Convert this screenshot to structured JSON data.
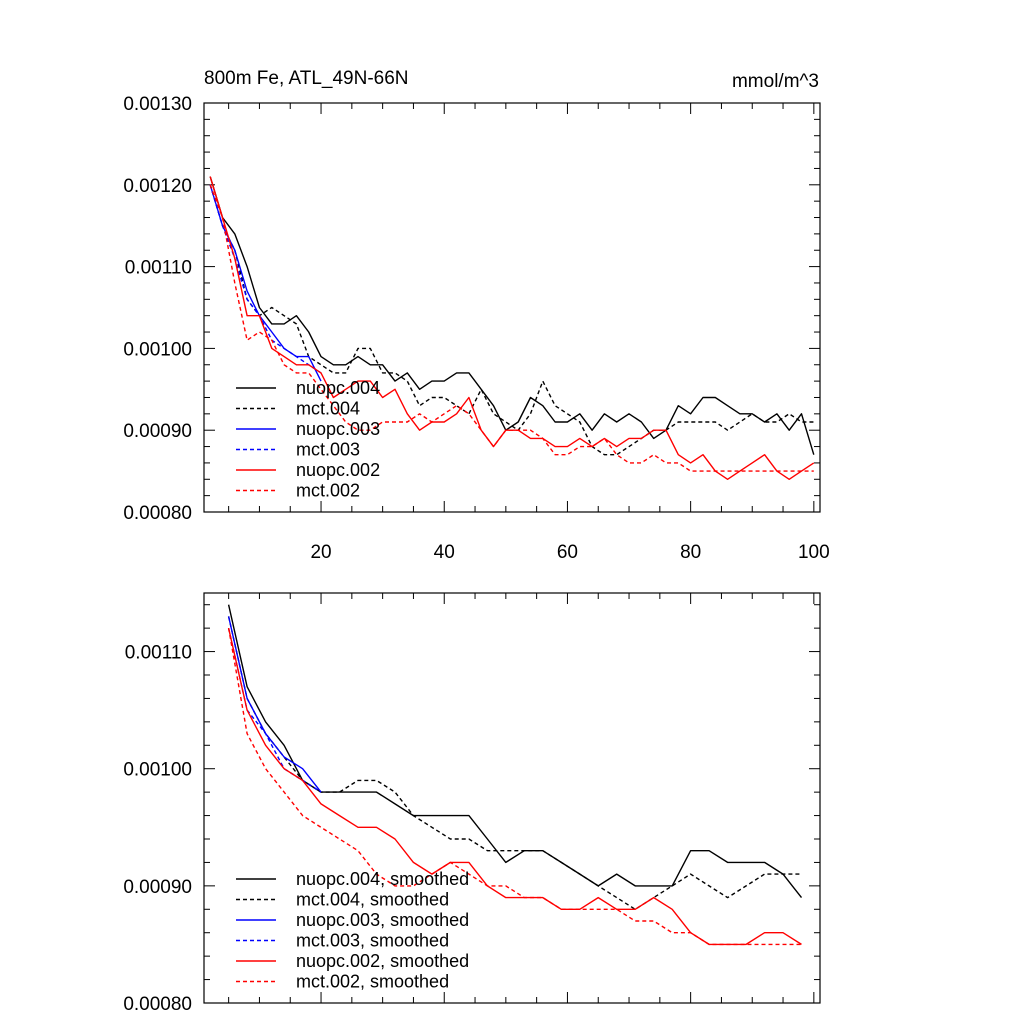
{
  "chart_data": [
    {
      "type": "line",
      "title": "800m Fe, ATL_49N-66N",
      "units": "mmol/m^3",
      "xlim": [
        1,
        101
      ],
      "ylim": [
        0.0008,
        0.0013
      ],
      "xticks": [
        20,
        40,
        60,
        80,
        100
      ],
      "xtick_labels": [
        "20",
        "40",
        "60",
        "80",
        "100"
      ],
      "yticks": [
        0.0008,
        0.0009,
        0.001,
        0.0011,
        0.0012,
        0.0013
      ],
      "ytick_labels": [
        "0.00080",
        "0.00090",
        "0.00100",
        "0.00110",
        "0.00120",
        "0.00130"
      ],
      "legend": "lower-left",
      "series": [
        {
          "name": "nuopc.004",
          "color": "#000000",
          "dash": "solid",
          "x": [
            2,
            4,
            6,
            8,
            10,
            12,
            14,
            16,
            18,
            20,
            22,
            24,
            26,
            28,
            30,
            32,
            34,
            36,
            38,
            40,
            42,
            44,
            46,
            48,
            50,
            52,
            54,
            56,
            58,
            60,
            62,
            64,
            66,
            68,
            70,
            72,
            74,
            76,
            78,
            80,
            82,
            84,
            86,
            88,
            90,
            92,
            94,
            96,
            98,
            100
          ],
          "y": [
            0.00121,
            0.00116,
            0.00114,
            0.0011,
            0.00105,
            0.00103,
            0.00103,
            0.00104,
            0.00102,
            0.00099,
            0.00098,
            0.00098,
            0.00099,
            0.00098,
            0.00098,
            0.00096,
            0.00097,
            0.00095,
            0.00096,
            0.00096,
            0.00097,
            0.00097,
            0.00095,
            0.00093,
            0.0009,
            0.00091,
            0.00094,
            0.00093,
            0.00091,
            0.00091,
            0.00092,
            0.0009,
            0.00092,
            0.00091,
            0.00092,
            0.00091,
            0.00089,
            0.0009,
            0.00093,
            0.00092,
            0.00094,
            0.00094,
            0.00093,
            0.00092,
            0.00092,
            0.00091,
            0.00092,
            0.0009,
            0.00092,
            0.00087
          ]
        },
        {
          "name": "mct.004",
          "color": "#000000",
          "dash": "dashed",
          "x": [
            2,
            4,
            6,
            8,
            10,
            12,
            14,
            16,
            18,
            20,
            22,
            24,
            26,
            28,
            30,
            32,
            34,
            36,
            38,
            40,
            42,
            44,
            46,
            48,
            50,
            52,
            54,
            56,
            58,
            60,
            62,
            64,
            66,
            68,
            70,
            72,
            74,
            76,
            78,
            80,
            82,
            84,
            86,
            88,
            90,
            92,
            94,
            96,
            98,
            100
          ],
          "y": [
            0.0012,
            0.00115,
            0.00112,
            0.00106,
            0.00104,
            0.00105,
            0.00104,
            0.00103,
            0.00099,
            0.00098,
            0.00097,
            0.00097,
            0.001,
            0.001,
            0.00097,
            0.00097,
            0.00096,
            0.00093,
            0.00094,
            0.00094,
            0.00093,
            0.00092,
            0.00095,
            0.00092,
            0.00091,
            0.0009,
            0.00092,
            0.00096,
            0.00093,
            0.00092,
            0.00091,
            0.00088,
            0.00087,
            0.00087,
            0.00088,
            0.00089,
            0.0009,
            0.0009,
            0.00091,
            0.00091,
            0.00091,
            0.00091,
            0.0009,
            0.00091,
            0.00092,
            0.00091,
            0.00091,
            0.00092,
            0.00091,
            0.00091
          ]
        },
        {
          "name": "nuopc.003",
          "color": "#0000ff",
          "dash": "solid",
          "x": [
            2,
            4,
            6,
            8,
            10,
            12,
            14,
            16,
            18,
            20
          ],
          "y": [
            0.0012,
            0.00115,
            0.00112,
            0.00107,
            0.00104,
            0.00102,
            0.001,
            0.00099,
            0.00099,
            0.00096
          ]
        },
        {
          "name": "mct.003",
          "color": "#0000ff",
          "dash": "dashed",
          "x": [
            2,
            4,
            6,
            8,
            10,
            12,
            14,
            16,
            18,
            20
          ],
          "y": [
            0.0012,
            0.00115,
            0.00111,
            0.00106,
            0.00104,
            0.00101,
            0.001,
            0.00099,
            0.00098,
            0.00097
          ]
        },
        {
          "name": "nuopc.002",
          "color": "#ff0000",
          "dash": "solid",
          "x": [
            2,
            4,
            6,
            8,
            10,
            12,
            14,
            16,
            18,
            20,
            22,
            24,
            26,
            28,
            30,
            32,
            34,
            36,
            38,
            40,
            42,
            44,
            46,
            48,
            50,
            52,
            54,
            56,
            58,
            60,
            62,
            64,
            66,
            68,
            70,
            72,
            74,
            76,
            78,
            80,
            82,
            84,
            86,
            88,
            90,
            92,
            94,
            96,
            98,
            100
          ],
          "y": [
            0.00121,
            0.00116,
            0.00111,
            0.00104,
            0.00104,
            0.001,
            0.00099,
            0.00098,
            0.00098,
            0.00097,
            0.00094,
            0.00095,
            0.00096,
            0.00096,
            0.00094,
            0.00095,
            0.00092,
            0.0009,
            0.00091,
            0.00091,
            0.00092,
            0.00094,
            0.0009,
            0.00088,
            0.0009,
            0.0009,
            0.00089,
            0.00089,
            0.00088,
            0.00088,
            0.00089,
            0.00088,
            0.00089,
            0.00088,
            0.00089,
            0.00089,
            0.0009,
            0.0009,
            0.00087,
            0.00086,
            0.00087,
            0.00085,
            0.00084,
            0.00085,
            0.00086,
            0.00087,
            0.00085,
            0.00084,
            0.00085,
            0.00086
          ]
        },
        {
          "name": "mct.002",
          "color": "#ff0000",
          "dash": "dashed",
          "x": [
            2,
            4,
            6,
            8,
            10,
            12,
            14,
            16,
            18,
            20,
            22,
            24,
            26,
            28,
            30,
            32,
            34,
            36,
            38,
            40,
            42,
            44,
            46,
            48,
            50,
            52,
            54,
            56,
            58,
            60,
            62,
            64,
            66,
            68,
            70,
            72,
            74,
            76,
            78,
            80,
            82,
            84,
            86,
            88,
            90,
            92,
            94,
            96,
            98,
            100
          ],
          "y": [
            0.0012,
            0.00116,
            0.00108,
            0.00101,
            0.00102,
            0.00101,
            0.00098,
            0.00097,
            0.00097,
            0.00095,
            0.00093,
            0.00091,
            0.0009,
            0.0009,
            0.00091,
            0.00091,
            0.00091,
            0.00092,
            0.00091,
            0.00092,
            0.00093,
            0.00092,
            0.0009,
            0.00088,
            0.0009,
            0.0009,
            0.0009,
            0.00089,
            0.00087,
            0.00087,
            0.00088,
            0.00088,
            0.00089,
            0.00087,
            0.00086,
            0.00086,
            0.00087,
            0.00086,
            0.00086,
            0.00085,
            0.00085,
            0.00085,
            0.00085,
            0.00085,
            0.00085,
            0.00085,
            0.00085,
            0.00085,
            0.00085,
            0.00085
          ]
        }
      ]
    },
    {
      "type": "line",
      "title": "",
      "xlim": [
        1,
        101
      ],
      "ylim": [
        0.0008,
        0.00115
      ],
      "xticks": [
        20,
        40,
        60,
        80,
        100
      ],
      "yticks": [
        0.0008,
        0.0009,
        0.001,
        0.0011
      ],
      "ytick_labels": [
        "0.00080",
        "0.00090",
        "0.00100",
        "0.00110"
      ],
      "legend": "lower-left",
      "series": [
        {
          "name": "nuopc.004, smoothed",
          "color": "#000000",
          "dash": "solid",
          "x": [
            5,
            8,
            11,
            14,
            17,
            20,
            23,
            26,
            29,
            32,
            35,
            38,
            41,
            44,
            47,
            50,
            53,
            56,
            59,
            62,
            65,
            68,
            71,
            74,
            77,
            80,
            83,
            86,
            89,
            92,
            95,
            98
          ],
          "y": [
            0.00114,
            0.00107,
            0.00104,
            0.00102,
            0.00099,
            0.00098,
            0.00098,
            0.00098,
            0.00098,
            0.00097,
            0.00096,
            0.00096,
            0.00096,
            0.00096,
            0.00094,
            0.00092,
            0.00093,
            0.00093,
            0.00092,
            0.00091,
            0.0009,
            0.00091,
            0.0009,
            0.0009,
            0.0009,
            0.00093,
            0.00093,
            0.00092,
            0.00092,
            0.00092,
            0.00091,
            0.00089
          ]
        },
        {
          "name": "mct.004, smoothed",
          "color": "#000000",
          "dash": "dashed",
          "x": [
            5,
            8,
            11,
            14,
            17,
            20,
            23,
            26,
            29,
            32,
            35,
            38,
            41,
            44,
            47,
            50,
            53,
            56,
            59,
            62,
            65,
            68,
            71,
            74,
            77,
            80,
            83,
            86,
            89,
            92,
            95,
            98
          ],
          "y": [
            0.00113,
            0.00106,
            0.00103,
            0.00101,
            0.00099,
            0.00098,
            0.00098,
            0.00099,
            0.00099,
            0.00098,
            0.00096,
            0.00095,
            0.00094,
            0.00094,
            0.00093,
            0.00093,
            0.00093,
            0.00093,
            0.00092,
            0.00091,
            0.0009,
            0.00089,
            0.00088,
            0.00089,
            0.0009,
            0.00091,
            0.0009,
            0.00089,
            0.0009,
            0.00091,
            0.00091,
            0.00091
          ]
        },
        {
          "name": "nuopc.003, smoothed",
          "color": "#0000ff",
          "dash": "solid",
          "x": [
            5,
            8,
            11,
            14,
            17,
            20
          ],
          "y": [
            0.00113,
            0.00106,
            0.00103,
            0.00101,
            0.001,
            0.00098
          ]
        },
        {
          "name": "mct.003, smoothed",
          "color": "#0000ff",
          "dash": "dashed",
          "x": [
            5,
            8,
            11,
            14,
            17,
            20
          ],
          "y": [
            0.00112,
            0.00105,
            0.00103,
            0.001,
            0.00099,
            0.00098
          ]
        },
        {
          "name": "nuopc.002, smoothed",
          "color": "#ff0000",
          "dash": "solid",
          "x": [
            5,
            8,
            11,
            14,
            17,
            20,
            23,
            26,
            29,
            32,
            35,
            38,
            41,
            44,
            47,
            50,
            53,
            56,
            59,
            62,
            65,
            68,
            71,
            74,
            77,
            80,
            83,
            86,
            89,
            92,
            95,
            98
          ],
          "y": [
            0.00112,
            0.00105,
            0.00102,
            0.001,
            0.00099,
            0.00097,
            0.00096,
            0.00095,
            0.00095,
            0.00094,
            0.00092,
            0.00091,
            0.00092,
            0.00092,
            0.0009,
            0.00089,
            0.00089,
            0.00089,
            0.00088,
            0.00088,
            0.00089,
            0.00088,
            0.00088,
            0.00089,
            0.00088,
            0.00086,
            0.00085,
            0.00085,
            0.00085,
            0.00086,
            0.00086,
            0.00085
          ]
        },
        {
          "name": "mct.002, smoothed",
          "color": "#ff0000",
          "dash": "dashed",
          "x": [
            5,
            8,
            11,
            14,
            17,
            20,
            23,
            26,
            29,
            32,
            35,
            38,
            41,
            44,
            47,
            50,
            53,
            56,
            59,
            62,
            65,
            68,
            71,
            74,
            77,
            80,
            83,
            86,
            89,
            92,
            95,
            98
          ],
          "y": [
            0.00112,
            0.00103,
            0.001,
            0.00098,
            0.00096,
            0.00095,
            0.00094,
            0.00093,
            0.00091,
            0.0009,
            0.0009,
            0.00091,
            0.00092,
            0.00091,
            0.0009,
            0.0009,
            0.00089,
            0.00089,
            0.00088,
            0.00088,
            0.00088,
            0.00088,
            0.00087,
            0.00087,
            0.00086,
            0.00086,
            0.00085,
            0.00085,
            0.00085,
            0.00085,
            0.00085,
            0.00085
          ]
        }
      ]
    }
  ]
}
